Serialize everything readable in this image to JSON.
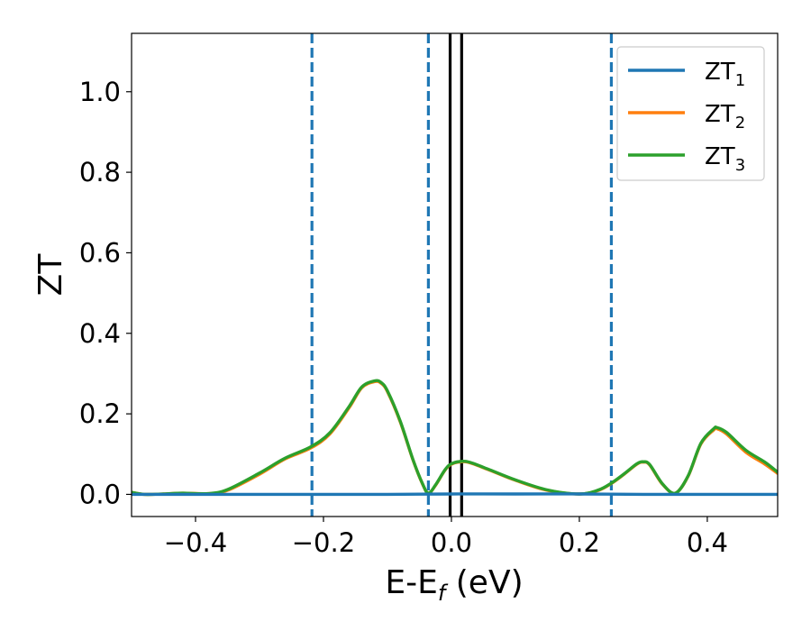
{
  "chart_data": {
    "type": "line",
    "xlabel_main": "E-E",
    "xlabel_sub": "f",
    "xlabel_unit": " (eV)",
    "ylabel": "ZT",
    "xlim": [
      -0.5,
      0.51
    ],
    "ylim": [
      -0.055,
      1.145
    ],
    "x_ticks": [
      -0.4,
      -0.2,
      0.0,
      0.2,
      0.4
    ],
    "x_tick_labels": [
      "−0.4",
      "−0.2",
      "0.0",
      "0.2",
      "0.4"
    ],
    "y_ticks": [
      0.0,
      0.2,
      0.4,
      0.6,
      0.8,
      1.0
    ],
    "y_tick_labels": [
      "0.0",
      "0.2",
      "0.4",
      "0.6",
      "0.8",
      "1.0"
    ],
    "grid": false,
    "legend_position": "top-right",
    "vlines_dashed": {
      "x": [
        -0.218,
        -0.036,
        0.25
      ],
      "color": "#1f77b4"
    },
    "vlines_solid": {
      "x": [
        -0.002,
        0.016
      ],
      "color": "#000000"
    },
    "series": [
      {
        "name_main": "ZT",
        "name_sub": "1",
        "color": "#1f77b4",
        "x": [
          -0.5,
          -0.4,
          -0.3,
          -0.2,
          -0.1,
          0.0,
          0.1,
          0.2,
          0.3,
          0.4,
          0.51
        ],
        "y": [
          0.0,
          0.0,
          0.0,
          0.0,
          0.0,
          0.001,
          0.001,
          0.001,
          0.0,
          0.0,
          0.0
        ]
      },
      {
        "name_main": "ZT",
        "name_sub": "2",
        "color": "#ff7f0e",
        "x": [
          -0.5,
          -0.48,
          -0.45,
          -0.42,
          -0.38,
          -0.35,
          -0.3,
          -0.26,
          -0.22,
          -0.19,
          -0.16,
          -0.14,
          -0.12,
          -0.11,
          -0.1,
          -0.08,
          -0.06,
          -0.045,
          -0.036,
          -0.025,
          -0.01,
          0.0,
          0.016,
          0.03,
          0.06,
          0.1,
          0.15,
          0.2,
          0.23,
          0.25,
          0.27,
          0.29,
          0.3,
          0.31,
          0.33,
          0.35,
          0.37,
          0.39,
          0.41,
          0.415,
          0.43,
          0.46,
          0.49,
          0.51
        ],
        "y": [
          0.005,
          0.0,
          0.001,
          0.003,
          0.002,
          0.01,
          0.05,
          0.088,
          0.115,
          0.15,
          0.215,
          0.265,
          0.28,
          0.276,
          0.255,
          0.18,
          0.085,
          0.025,
          0.003,
          0.022,
          0.06,
          0.075,
          0.081,
          0.078,
          0.06,
          0.035,
          0.01,
          0.001,
          0.01,
          0.027,
          0.05,
          0.075,
          0.08,
          0.073,
          0.025,
          0.003,
          0.045,
          0.125,
          0.16,
          0.163,
          0.15,
          0.105,
          0.075,
          0.052
        ]
      },
      {
        "name_main": "ZT",
        "name_sub": "3",
        "color": "#2ca02c",
        "x": [
          -0.5,
          -0.48,
          -0.45,
          -0.42,
          -0.38,
          -0.35,
          -0.3,
          -0.26,
          -0.22,
          -0.19,
          -0.16,
          -0.14,
          -0.12,
          -0.11,
          -0.1,
          -0.08,
          -0.06,
          -0.045,
          -0.036,
          -0.025,
          -0.01,
          0.0,
          0.016,
          0.03,
          0.06,
          0.1,
          0.15,
          0.2,
          0.23,
          0.25,
          0.27,
          0.29,
          0.3,
          0.31,
          0.33,
          0.35,
          0.37,
          0.39,
          0.41,
          0.415,
          0.43,
          0.46,
          0.49,
          0.51
        ],
        "y": [
          0.005,
          0.0,
          0.001,
          0.003,
          0.002,
          0.012,
          0.053,
          0.09,
          0.118,
          0.153,
          0.218,
          0.267,
          0.282,
          0.278,
          0.257,
          0.182,
          0.086,
          0.026,
          0.003,
          0.023,
          0.061,
          0.076,
          0.082,
          0.079,
          0.061,
          0.036,
          0.011,
          0.001,
          0.011,
          0.028,
          0.051,
          0.076,
          0.081,
          0.074,
          0.026,
          0.003,
          0.046,
          0.127,
          0.163,
          0.166,
          0.154,
          0.11,
          0.08,
          0.055
        ]
      }
    ]
  }
}
